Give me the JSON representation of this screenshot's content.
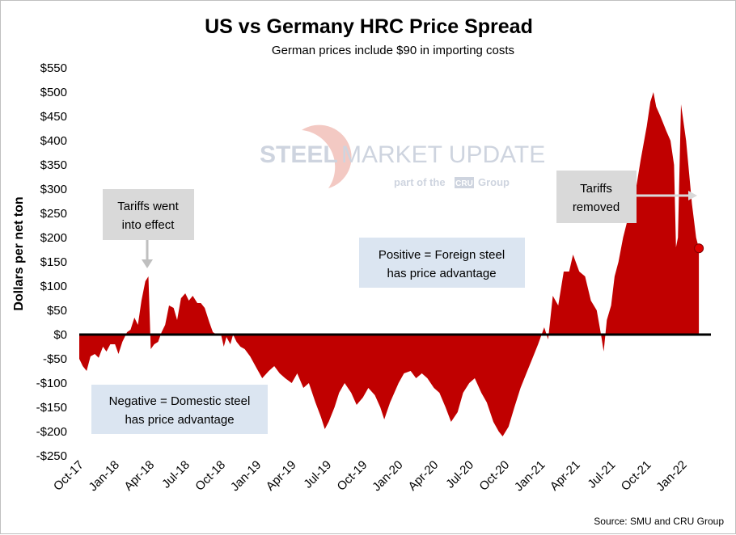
{
  "chart_data": {
    "type": "area",
    "title": "US vs Germany HRC Price Spread",
    "subtitle": "German prices include $90 in importing costs",
    "ylabel": "Dollars per net ton",
    "xlabel": "",
    "source": "Source: SMU and CRU Group",
    "ylim": [
      -250,
      550
    ],
    "yticks": [
      550,
      500,
      450,
      400,
      350,
      300,
      250,
      200,
      150,
      100,
      50,
      0,
      -50,
      -100,
      -150,
      -200,
      -250
    ],
    "ytick_labels": [
      "$550",
      "$500",
      "$450",
      "$400",
      "$350",
      "$300",
      "$250",
      "$200",
      "$150",
      "$100",
      "$50",
      "$0",
      "-$50",
      "-$100",
      "-$150",
      "-$200",
      "-$250"
    ],
    "x_start": "2017-10-01",
    "x_end": "2022-03-15",
    "xtick_labels": [
      "Oct-17",
      "Jan-18",
      "Apr-18",
      "Jul-18",
      "Oct-18",
      "Jan-19",
      "Apr-19",
      "Jul-19",
      "Oct-19",
      "Jan-20",
      "Apr-20",
      "Jul-20",
      "Oct-20",
      "Jan-21",
      "Apr-21",
      "Jul-21",
      "Oct-21",
      "Jan-22"
    ],
    "xtick_dates": [
      "2017-10-01",
      "2018-01-01",
      "2018-04-01",
      "2018-07-01",
      "2018-10-01",
      "2019-01-01",
      "2019-04-01",
      "2019-07-01",
      "2019-10-01",
      "2020-01-01",
      "2020-04-01",
      "2020-07-01",
      "2020-10-01",
      "2021-01-01",
      "2021-04-01",
      "2021-07-01",
      "2021-10-01",
      "2022-01-01"
    ],
    "series": [
      {
        "color": "#c00000",
        "points": [
          [
            "2017-10-01",
            -50
          ],
          [
            "2017-10-10",
            -65
          ],
          [
            "2017-10-20",
            -75
          ],
          [
            "2017-10-30",
            -45
          ],
          [
            "2017-11-10",
            -40
          ],
          [
            "2017-11-20",
            -48
          ],
          [
            "2017-12-01",
            -25
          ],
          [
            "2017-12-10",
            -35
          ],
          [
            "2017-12-20",
            -20
          ],
          [
            "2018-01-01",
            -20
          ],
          [
            "2018-01-10",
            -40
          ],
          [
            "2018-01-20",
            -15
          ],
          [
            "2018-02-01",
            5
          ],
          [
            "2018-02-10",
            10
          ],
          [
            "2018-02-20",
            35
          ],
          [
            "2018-03-01",
            20
          ],
          [
            "2018-03-10",
            70
          ],
          [
            "2018-03-20",
            110
          ],
          [
            "2018-03-28",
            120
          ],
          [
            "2018-04-03",
            -30
          ],
          [
            "2018-04-12",
            -20
          ],
          [
            "2018-04-22",
            -15
          ],
          [
            "2018-05-01",
            5
          ],
          [
            "2018-05-10",
            20
          ],
          [
            "2018-05-20",
            60
          ],
          [
            "2018-06-01",
            55
          ],
          [
            "2018-06-10",
            30
          ],
          [
            "2018-06-20",
            75
          ],
          [
            "2018-07-01",
            85
          ],
          [
            "2018-07-10",
            70
          ],
          [
            "2018-07-20",
            80
          ],
          [
            "2018-08-01",
            65
          ],
          [
            "2018-08-10",
            65
          ],
          [
            "2018-08-20",
            55
          ],
          [
            "2018-09-01",
            25
          ],
          [
            "2018-09-10",
            5
          ],
          [
            "2018-09-20",
            0
          ],
          [
            "2018-10-01",
            0
          ],
          [
            "2018-10-08",
            -25
          ],
          [
            "2018-10-15",
            -5
          ],
          [
            "2018-10-25",
            -20
          ],
          [
            "2018-11-01",
            0
          ],
          [
            "2018-11-10",
            -15
          ],
          [
            "2018-11-20",
            -25
          ],
          [
            "2018-12-01",
            -30
          ],
          [
            "2018-12-15",
            -45
          ],
          [
            "2019-01-01",
            -70
          ],
          [
            "2019-01-15",
            -90
          ],
          [
            "2019-02-01",
            -75
          ],
          [
            "2019-02-15",
            -65
          ],
          [
            "2019-03-01",
            -80
          ],
          [
            "2019-03-15",
            -90
          ],
          [
            "2019-04-01",
            -100
          ],
          [
            "2019-04-15",
            -80
          ],
          [
            "2019-05-01",
            -110
          ],
          [
            "2019-05-15",
            -100
          ],
          [
            "2019-06-01",
            -140
          ],
          [
            "2019-06-15",
            -170
          ],
          [
            "2019-06-25",
            -195
          ],
          [
            "2019-07-05",
            -180
          ],
          [
            "2019-07-20",
            -150
          ],
          [
            "2019-08-01",
            -120
          ],
          [
            "2019-08-15",
            -100
          ],
          [
            "2019-09-01",
            -120
          ],
          [
            "2019-09-15",
            -145
          ],
          [
            "2019-10-01",
            -130
          ],
          [
            "2019-10-15",
            -110
          ],
          [
            "2019-11-01",
            -125
          ],
          [
            "2019-11-15",
            -150
          ],
          [
            "2019-11-25",
            -175
          ],
          [
            "2019-12-10",
            -140
          ],
          [
            "2020-01-01",
            -100
          ],
          [
            "2020-01-15",
            -80
          ],
          [
            "2020-02-01",
            -75
          ],
          [
            "2020-02-15",
            -90
          ],
          [
            "2020-03-01",
            -80
          ],
          [
            "2020-03-15",
            -90
          ],
          [
            "2020-04-01",
            -110
          ],
          [
            "2020-04-15",
            -120
          ],
          [
            "2020-05-01",
            -150
          ],
          [
            "2020-05-15",
            -180
          ],
          [
            "2020-06-01",
            -160
          ],
          [
            "2020-06-15",
            -120
          ],
          [
            "2020-07-01",
            -100
          ],
          [
            "2020-07-15",
            -90
          ],
          [
            "2020-08-01",
            -120
          ],
          [
            "2020-08-15",
            -140
          ],
          [
            "2020-09-01",
            -180
          ],
          [
            "2020-09-15",
            -200
          ],
          [
            "2020-09-25",
            -210
          ],
          [
            "2020-10-10",
            -190
          ],
          [
            "2020-10-25",
            -150
          ],
          [
            "2020-11-10",
            -110
          ],
          [
            "2020-11-25",
            -80
          ],
          [
            "2020-12-10",
            -50
          ],
          [
            "2020-12-25",
            -20
          ],
          [
            "2021-01-10",
            15
          ],
          [
            "2021-01-20",
            -10
          ],
          [
            "2021-02-01",
            80
          ],
          [
            "2021-02-15",
            60
          ],
          [
            "2021-03-01",
            130
          ],
          [
            "2021-03-15",
            130
          ],
          [
            "2021-03-25",
            165
          ],
          [
            "2021-04-10",
            130
          ],
          [
            "2021-04-25",
            120
          ],
          [
            "2021-05-10",
            70
          ],
          [
            "2021-05-25",
            50
          ],
          [
            "2021-06-05",
            0
          ],
          [
            "2021-06-12",
            -35
          ],
          [
            "2021-06-20",
            30
          ],
          [
            "2021-07-01",
            60
          ],
          [
            "2021-07-10",
            120
          ],
          [
            "2021-07-20",
            150
          ],
          [
            "2021-08-01",
            200
          ],
          [
            "2021-08-15",
            245
          ],
          [
            "2021-09-01",
            290
          ],
          [
            "2021-09-15",
            360
          ],
          [
            "2021-10-01",
            430
          ],
          [
            "2021-10-10",
            480
          ],
          [
            "2021-10-18",
            500
          ],
          [
            "2021-10-25",
            470
          ],
          [
            "2021-11-05",
            450
          ],
          [
            "2021-11-20",
            420
          ],
          [
            "2021-12-01",
            400
          ],
          [
            "2021-12-10",
            350
          ],
          [
            "2021-12-15",
            180
          ],
          [
            "2021-12-20",
            200
          ],
          [
            "2021-12-28",
            475
          ],
          [
            "2022-01-10",
            400
          ],
          [
            "2022-01-25",
            270
          ],
          [
            "2022-02-05",
            200
          ],
          [
            "2022-02-12",
            178
          ]
        ]
      }
    ],
    "end_marker": {
      "date": "2022-02-12",
      "value": 178
    },
    "annotations": {
      "tariffs_on_line1": "Tariffs went",
      "tariffs_on_line2": "into effect",
      "tariffs_off_line1": "Tariffs",
      "tariffs_off_line2": "removed",
      "positive_line1": "Positive = Foreign steel",
      "positive_line2": "has price advantage",
      "negative_line1": "Negative = Domestic steel",
      "negative_line2": "has price advantage"
    },
    "watermark": {
      "brand_bold": "STEEL",
      "brand_thin": "MARKET UPDATE",
      "tagline_pre": "part of the",
      "tagline_logo": "CRU",
      "tagline_post": "Group"
    }
  }
}
